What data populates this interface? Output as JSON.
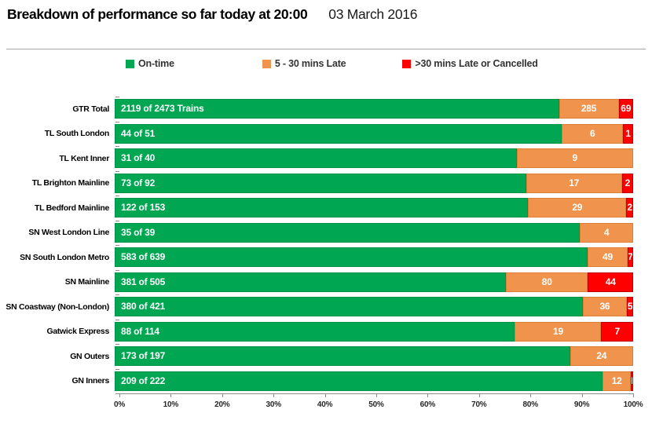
{
  "header": {
    "title": "Breakdown of performance so far today at 20:00",
    "date": "03 March 2016"
  },
  "chart_data": {
    "type": "bar",
    "orientation": "horizontal_stacked",
    "title": "Breakdown of performance so far today at 20:00",
    "subtitle_date": "03 March 2016",
    "units": "percent of trains",
    "legend": [
      "On-time",
      "5 - 30 mins Late",
      ">30 mins Late or Cancelled"
    ],
    "colors": {
      "ontime": "#00a651",
      "late": "#f0944d",
      "cancelled": "#fe0000"
    },
    "x_axis": {
      "range": [
        0,
        100
      ],
      "ticks": [
        "0%",
        "10%",
        "20%",
        "30%",
        "40%",
        "50%",
        "60%",
        "70%",
        "80%",
        "90%",
        "100%"
      ]
    },
    "rows": [
      {
        "category": "GTR Total",
        "total": 2473,
        "ontime": 2119,
        "ontime_label": "2119 of 2473 Trains",
        "late": 285,
        "cancelled": 69
      },
      {
        "category": "TL South London",
        "total": 51,
        "ontime": 44,
        "ontime_label": "44 of 51",
        "late": 6,
        "cancelled": 1
      },
      {
        "category": "TL Kent Inner",
        "total": 40,
        "ontime": 31,
        "ontime_label": "31 of 40",
        "late": 9,
        "cancelled": 0
      },
      {
        "category": "TL Brighton Mainline",
        "total": 92,
        "ontime": 73,
        "ontime_label": "73 of 92",
        "late": 17,
        "cancelled": 2
      },
      {
        "category": "TL Bedford Mainline",
        "total": 153,
        "ontime": 122,
        "ontime_label": "122 of 153",
        "late": 29,
        "cancelled": 2
      },
      {
        "category": "SN West London Line",
        "total": 39,
        "ontime": 35,
        "ontime_label": "35 of 39",
        "late": 4,
        "cancelled": 0
      },
      {
        "category": "SN South London Metro",
        "total": 639,
        "ontime": 583,
        "ontime_label": "583 of 639",
        "late": 49,
        "cancelled": 7
      },
      {
        "category": "SN Mainline",
        "total": 505,
        "ontime": 381,
        "ontime_label": "381 of 505",
        "late": 80,
        "cancelled": 44
      },
      {
        "category": "SN Coastway (Non-London)",
        "total": 421,
        "ontime": 380,
        "ontime_label": "380 of 421",
        "late": 36,
        "cancelled": 5
      },
      {
        "category": "Gatwick Express",
        "total": 114,
        "ontime": 88,
        "ontime_label": "88 of 114",
        "late": 19,
        "cancelled": 7
      },
      {
        "category": "GN Outers",
        "total": 197,
        "ontime": 173,
        "ontime_label": "173 of 197",
        "late": 24,
        "cancelled": 0
      },
      {
        "category": "GN Inners",
        "total": 222,
        "ontime": 209,
        "ontime_label": "209 of 222",
        "late": 12,
        "cancelled": 1
      }
    ]
  }
}
